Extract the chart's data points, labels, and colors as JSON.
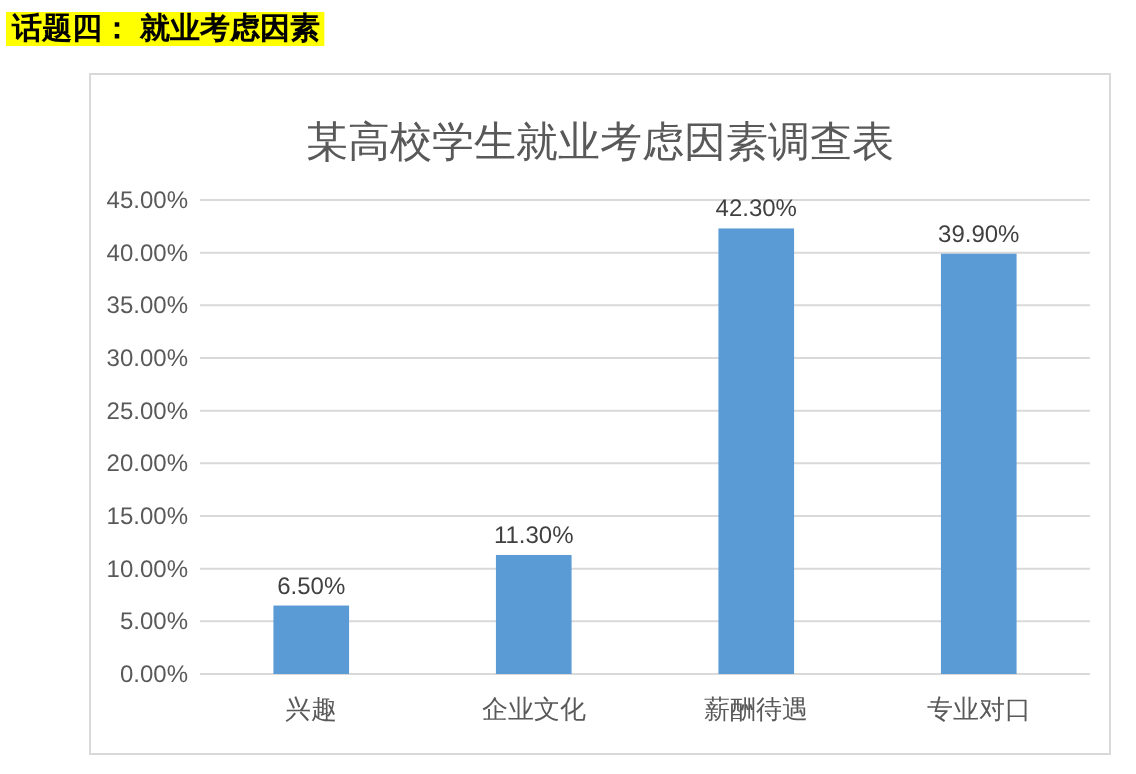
{
  "chart_data": {
    "type": "bar",
    "title": "某高校学生就业考虑因素调查表",
    "annotations": [
      "话题四： 就业考虑因素"
    ],
    "categories": [
      "兴趣",
      "企业文化",
      "薪酬待遇",
      "专业对口"
    ],
    "values": [
      6.5,
      11.3,
      42.3,
      39.9
    ],
    "value_labels": [
      "6.50%",
      "11.30%",
      "42.30%",
      "39.90%"
    ],
    "color": "#5b9bd5",
    "ylim": [
      0,
      45
    ],
    "yticks": [
      {
        "value": 0,
        "label": "0.00%"
      },
      {
        "value": 5,
        "label": "5.00%"
      },
      {
        "value": 10,
        "label": "10.00%"
      },
      {
        "value": 15,
        "label": "15.00%"
      },
      {
        "value": 20,
        "label": "20.00%"
      },
      {
        "value": 25,
        "label": "25.00%"
      },
      {
        "value": 30,
        "label": "30.00%"
      },
      {
        "value": 35,
        "label": "35.00%"
      },
      {
        "value": 40,
        "label": "40.00%"
      },
      {
        "value": 45,
        "label": "45.00%"
      }
    ],
    "grid": "y"
  }
}
